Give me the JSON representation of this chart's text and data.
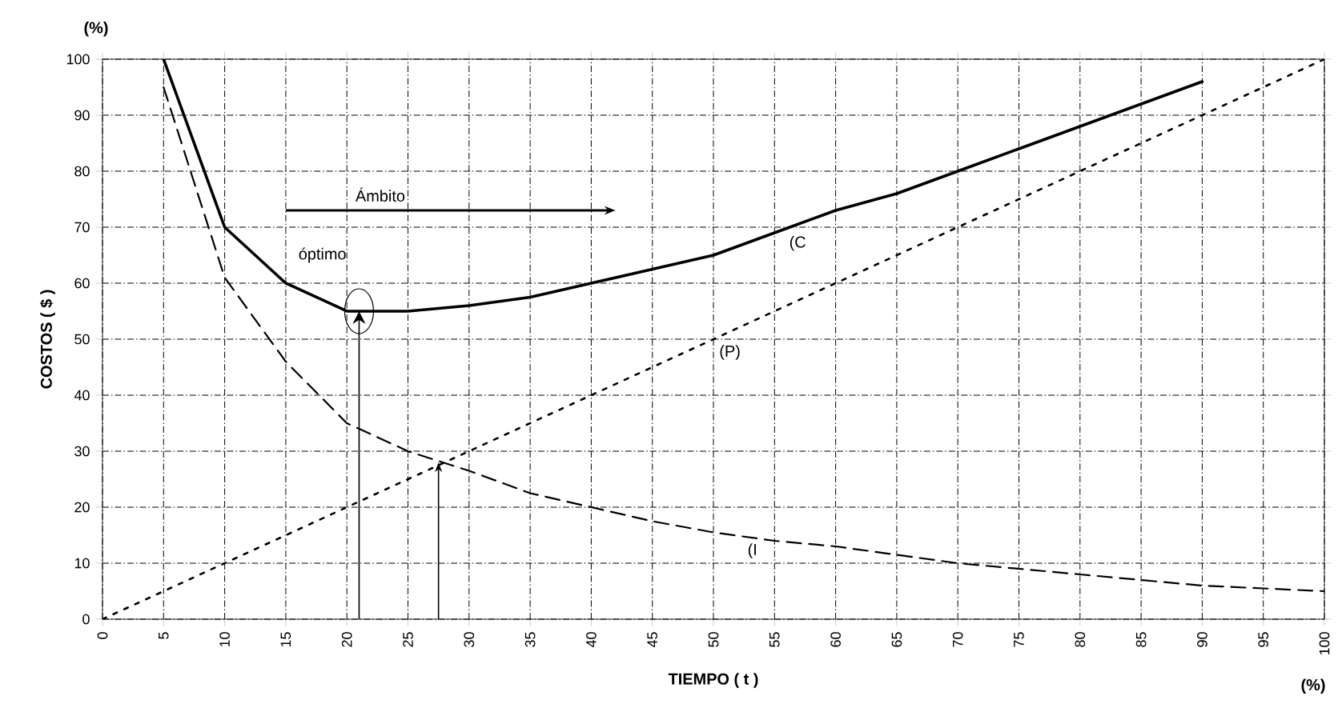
{
  "chart_data": {
    "type": "line",
    "xlabel": "TIEMPO ( t )",
    "ylabel": "COSTOS ( $ )",
    "xlim": [
      0,
      100
    ],
    "ylim": [
      0,
      100
    ],
    "xticks": [
      0,
      5,
      10,
      15,
      20,
      25,
      30,
      35,
      40,
      45,
      50,
      55,
      60,
      65,
      70,
      75,
      80,
      85,
      90,
      95,
      100
    ],
    "yticks": [
      0,
      10,
      20,
      30,
      40,
      50,
      60,
      70,
      80,
      90,
      100
    ],
    "grid": true,
    "marker": "none",
    "series": [
      {
        "name": "(C",
        "color": "#000000",
        "line_style": "solid",
        "x": [
          5,
          10,
          15,
          20,
          25,
          30,
          35,
          40,
          45,
          50,
          55,
          60,
          65,
          70,
          75,
          80,
          85,
          90
        ],
        "values": [
          100,
          70,
          60,
          55,
          55,
          56,
          57.5,
          60,
          62.5,
          65,
          69,
          73,
          76,
          80,
          84,
          88,
          92,
          96
        ]
      },
      {
        "name": "(P)",
        "color": "#000000",
        "line_style": "dotted",
        "x": [
          0,
          100
        ],
        "values": [
          0,
          100
        ]
      },
      {
        "name": "(I",
        "color": "#000000",
        "line_style": "dashed",
        "x": [
          5,
          10,
          15,
          20,
          25,
          30,
          35,
          40,
          45,
          50,
          55,
          60,
          65,
          70,
          75,
          80,
          85,
          90,
          95,
          100
        ],
        "values": [
          95,
          61,
          46,
          35,
          30,
          26.5,
          22.5,
          20,
          17.5,
          15.5,
          14,
          13,
          11.5,
          10,
          9,
          8,
          7,
          6,
          5.5,
          5
        ]
      }
    ],
    "annotations": [
      "(%)",
      "(%)",
      "Ámbito",
      "óptimo"
    ]
  }
}
